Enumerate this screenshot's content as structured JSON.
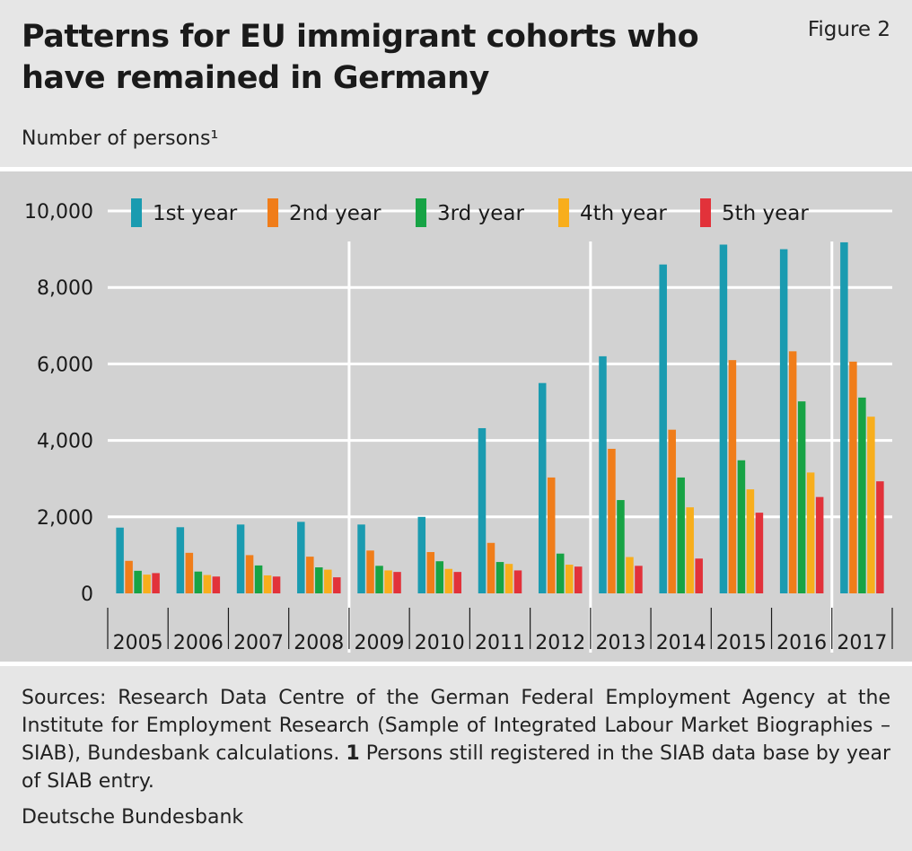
{
  "header": {
    "title": "Patterns for EU immigrant cohorts who have remained in Germany",
    "figure": "Figure 2",
    "unit": "Number of persons¹"
  },
  "colors": {
    "background": "#e6e6e6",
    "plot_background": "#d2d2d2",
    "series": [
      "#1a9bb0",
      "#f07d1a",
      "#17a345",
      "#f8ae1c",
      "#e2323a"
    ]
  },
  "chart_data": {
    "type": "bar",
    "title": "Patterns for EU immigrant cohorts who have remained in Germany",
    "ylabel": "Number of persons¹",
    "xlabel": "",
    "ylim": [
      0,
      10000
    ],
    "yticks": [
      0,
      2000,
      4000,
      6000,
      8000,
      10000
    ],
    "ytick_labels": [
      "0",
      "2,000",
      "4,000",
      "6,000",
      "8,000",
      "10,000"
    ],
    "grid": true,
    "legend_position": "top",
    "categories": [
      "2005",
      "2006",
      "2007",
      "2008",
      "2009",
      "2010",
      "2011",
      "2012",
      "2013",
      "2014",
      "2015",
      "2016",
      "2017"
    ],
    "series": [
      {
        "name": "1st year",
        "values": [
          1720,
          1730,
          1800,
          1870,
          1800,
          2000,
          4320,
          5500,
          6200,
          8600,
          9120,
          9000,
          9180
        ]
      },
      {
        "name": "2nd year",
        "values": [
          850,
          1060,
          1000,
          960,
          1120,
          1080,
          1320,
          3030,
          3780,
          4280,
          6100,
          6330,
          6060
        ]
      },
      {
        "name": "3rd year",
        "values": [
          590,
          570,
          730,
          680,
          720,
          840,
          820,
          1040,
          2440,
          3030,
          3480,
          5020,
          5120
        ]
      },
      {
        "name": "4th year",
        "values": [
          490,
          480,
          470,
          620,
          600,
          640,
          770,
          750,
          950,
          2250,
          2720,
          3160,
          4620
        ]
      },
      {
        "name": "5th year",
        "values": [
          530,
          440,
          440,
          420,
          560,
          560,
          600,
          700,
          720,
          910,
          2110,
          2520,
          2930
        ]
      }
    ]
  },
  "notes": {
    "sources_text": "Sources: Research Data Centre of the German Federal Employment Agency at the Institute for Employment Research (Sample of Integrated Labour Market Biographies – SIAB), Bundesbank calculations.",
    "footnote_marker": "1",
    "footnote_text": "Persons still registered in the SIAB data base by year of SIAB entry.",
    "publisher": "Deutsche Bundesbank"
  }
}
